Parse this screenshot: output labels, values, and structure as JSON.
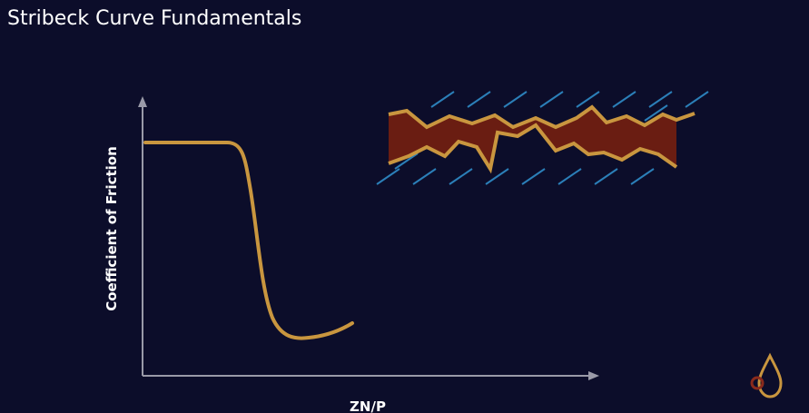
{
  "title": "Stribeck Curve Fundamentals",
  "diagram": {
    "y_axis_label": "Coefficient of Friction",
    "x_axis_label": "ZN/P"
  }
}
